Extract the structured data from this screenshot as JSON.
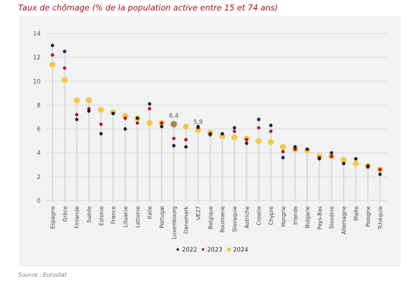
{
  "title": "Taux de chômage (% de la population active entre 15 et 74 ans)",
  "source": "Source : Eurostat",
  "colors": {
    "2022": "#0d1b3a",
    "2023": "#b0122a",
    "2024": "#f5c842",
    "highlight": "#a8894a",
    "stem": "#d9dadc",
    "grid": "#dcdde0"
  },
  "chart_data": {
    "type": "scatter",
    "title": "Taux de chômage (% de la population active entre 15 et 74 ans)",
    "xlabel": "",
    "ylabel": "",
    "ylim": [
      0,
      14
    ],
    "yticks": [
      0,
      2,
      4,
      6,
      8,
      10,
      12,
      14
    ],
    "grid": true,
    "legend_position": "bottom",
    "categories": [
      "Espagne",
      "Grèce",
      "Finlande",
      "Suède",
      "Estonie",
      "France",
      "Lituanie",
      "Lettonie",
      "Italie",
      "Portugal",
      "Luxembourg",
      "Danemark",
      "UE27",
      "Belgique",
      "Roumanie",
      "Slovaquie",
      "Autriche",
      "Croatie",
      "Chypre",
      "Hongrie",
      "Irlande",
      "Bulgarie",
      "Pays-Bas",
      "Slovénie",
      "Allemagne",
      "Malte",
      "Pologne",
      "Tchéquie"
    ],
    "series": [
      {
        "name": "2022",
        "values": [
          13.0,
          12.5,
          6.8,
          7.5,
          5.6,
          7.3,
          6.0,
          6.9,
          8.1,
          6.2,
          4.6,
          4.5,
          6.2,
          5.6,
          5.6,
          6.1,
          4.8,
          6.8,
          6.3,
          3.6,
          4.5,
          4.3,
          3.5,
          4.0,
          3.1,
          3.5,
          2.9,
          2.2
        ]
      },
      {
        "name": "2023",
        "values": [
          12.2,
          11.1,
          7.2,
          7.7,
          6.4,
          7.3,
          6.9,
          6.5,
          7.7,
          6.5,
          5.2,
          5.1,
          6.1,
          5.5,
          5.6,
          5.8,
          5.1,
          6.1,
          5.8,
          4.1,
          4.3,
          4.3,
          3.6,
          3.7,
          3.1,
          3.5,
          2.8,
          2.6
        ]
      },
      {
        "name": "2024",
        "values": [
          11.4,
          10.1,
          8.4,
          8.4,
          7.6,
          7.4,
          7.1,
          6.9,
          6.5,
          6.5,
          6.4,
          6.2,
          5.9,
          5.7,
          5.4,
          5.3,
          5.2,
          5.0,
          4.9,
          4.5,
          4.3,
          4.2,
          3.7,
          3.7,
          3.4,
          3.1,
          2.9,
          2.6
        ]
      }
    ],
    "annotations": [
      {
        "category": "Luxembourg",
        "series": "2024",
        "text": "6,4",
        "highlight": true
      },
      {
        "category": "UE27",
        "series": "2024",
        "text": "5,9",
        "highlight": false
      }
    ]
  }
}
